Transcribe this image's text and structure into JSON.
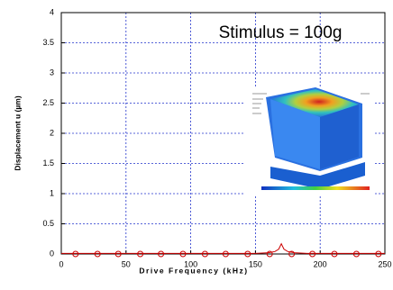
{
  "chart_data": {
    "type": "line",
    "xlabel": "Drive Frequency (kHz)",
    "ylabel": "Displacement u (µm)",
    "annotation": "Stimulus = 100g",
    "xlim": [
      0,
      250
    ],
    "xticks": [
      0,
      50,
      100,
      150,
      200,
      250
    ],
    "ylim": [
      0,
      4
    ],
    "yticks": [
      0,
      0.5,
      1,
      1.5,
      2,
      2.5,
      3,
      3.5,
      4
    ],
    "grid": true,
    "series": [
      {
        "color": "#cc0000",
        "marker": "none",
        "x": [
          0,
          150,
          160,
          165,
          168,
          170,
          172,
          175,
          180,
          190,
          250
        ],
        "values": [
          0.01,
          0.01,
          0.02,
          0.04,
          0.08,
          0.17,
          0.08,
          0.04,
          0.02,
          0.01,
          0.01
        ]
      },
      {
        "color": "#cc0000",
        "marker": "open-circle",
        "x": [
          11,
          28,
          44,
          61,
          77,
          94,
          111,
          127,
          144,
          161,
          178,
          194,
          211,
          228,
          245
        ],
        "values": [
          0,
          0,
          0,
          0,
          0,
          0,
          0,
          0,
          0,
          0,
          0,
          0,
          0,
          0,
          0
        ]
      }
    ]
  }
}
